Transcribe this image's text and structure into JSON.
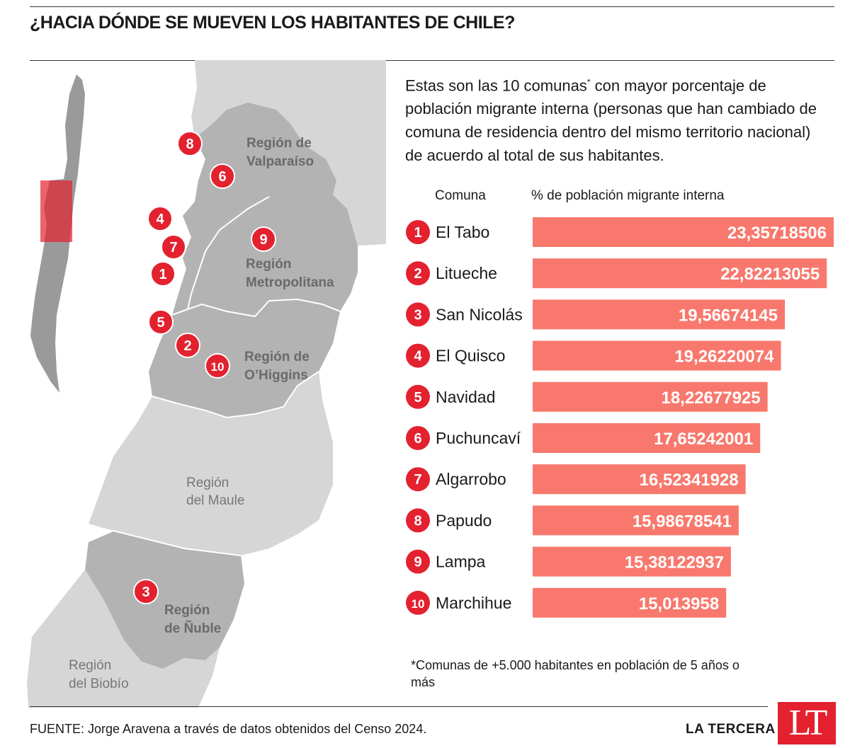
{
  "header": {
    "title": "¿HACIA DÓNDE SE MUEVEN LOS HABITANTES DE CHILE?"
  },
  "intro": {
    "text_before": "Estas son las 10 comunas",
    "asterisk": "*",
    "text_after": " con mayor porcentaje de población migrante interna (personas que han cambiado de comuna de residencia dentro del mismo territorio nacional) de acuerdo al total de sus habitantes."
  },
  "columns": {
    "comuna": "Comuna",
    "percent": "% de población migrante interna"
  },
  "colors": {
    "bar": "#f8786d",
    "badge": "#e3212f",
    "region_dark": "#b3b3b3",
    "region_light": "#d6d6d6"
  },
  "chart_data": {
    "type": "bar",
    "orientation": "horizontal",
    "categories": [
      "El Tabo",
      "Litueche",
      "San Nicolás",
      "El Quisco",
      "Navidad",
      "Puchuncaví",
      "Algarrobo",
      "Papudo",
      "Lampa",
      "Marchihue"
    ],
    "ranks": [
      "1",
      "2",
      "3",
      "4",
      "5",
      "6",
      "7",
      "8",
      "9",
      "10"
    ],
    "values": [
      23.35718506,
      22.82213055,
      19.56674145,
      19.26220074,
      18.22677925,
      17.65242001,
      16.52341928,
      15.98678541,
      15.38122937,
      15.013958
    ],
    "value_labels": [
      "23,35718506",
      "22,82213055",
      "19,56674145",
      "19,26220074",
      "18,22677925",
      "17,65242001",
      "16,52341928",
      "15,98678541",
      "15,38122937",
      "15,013958"
    ],
    "xlabel": "% de población migrante interna",
    "ylabel": "Comuna"
  },
  "map": {
    "regions": {
      "valparaiso": [
        "Región de",
        "Valparaíso"
      ],
      "metropolitana": [
        "Región",
        "Metropolitana"
      ],
      "ohiggins": [
        "Región de",
        "O’Higgins"
      ],
      "maule": [
        "Región",
        "del Maule"
      ],
      "nuble": [
        "Región",
        "de Ñuble"
      ],
      "biobio": [
        "Región",
        "del Biobío"
      ]
    },
    "markers": [
      "1",
      "2",
      "3",
      "4",
      "5",
      "6",
      "7",
      "8",
      "9",
      "10"
    ]
  },
  "footnote": "*Comunas de +5.000 habitantes en población de 5 años o más",
  "source": "FUENTE: Jorge Aravena a través de datos obtenidos del Censo 2024.",
  "brand": {
    "name": "LA TERCERA",
    "logo": "LT"
  }
}
